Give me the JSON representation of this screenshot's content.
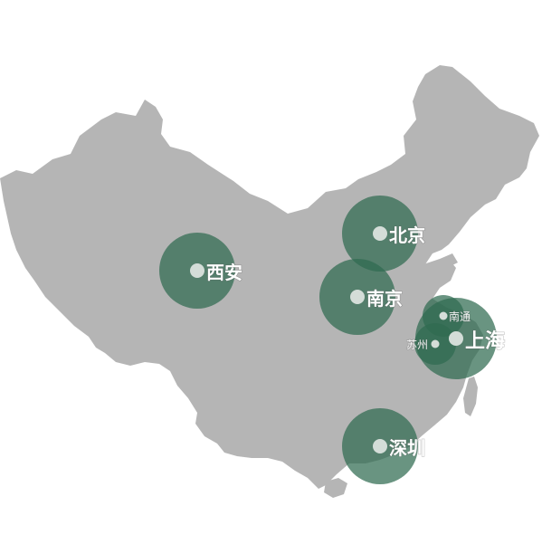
{
  "map": {
    "land_color": "#b5b5b5",
    "bubble_color": "#2f6b50",
    "dot_color": "#d4ddd8",
    "label_color": "#ffffff"
  },
  "cities": [
    {
      "key": "beijing",
      "name": "北京",
      "size": "large"
    },
    {
      "key": "xian",
      "name": "西安",
      "size": "large"
    },
    {
      "key": "nanjing",
      "name": "南京",
      "size": "large"
    },
    {
      "key": "nantong",
      "name": "南通",
      "size": "small"
    },
    {
      "key": "suzhou",
      "name": "苏州",
      "size": "small"
    },
    {
      "key": "shanghai",
      "name": "上海",
      "size": "xlarge"
    },
    {
      "key": "shenzhen",
      "name": "深圳",
      "size": "large"
    }
  ]
}
